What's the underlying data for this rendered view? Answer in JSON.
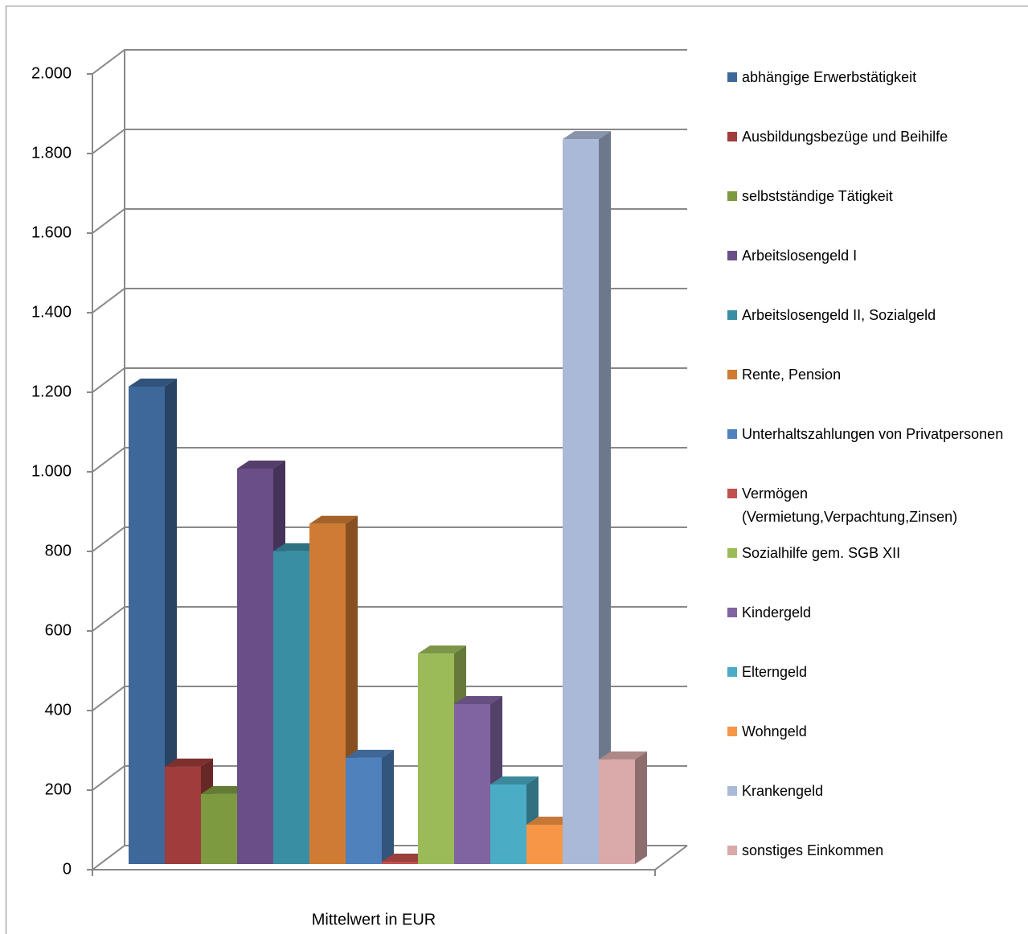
{
  "chart_data": {
    "type": "bar3d",
    "categories": [
      "Mittelwert in EUR"
    ],
    "ylim": [
      0,
      2000
    ],
    "yticks": [
      0,
      200,
      400,
      600,
      800,
      {
        "value": 1000,
        "label": "1.000"
      },
      {
        "value": 1200,
        "label": "1.200"
      },
      {
        "value": 1400,
        "label": "1.400"
      },
      {
        "value": 1600,
        "label": "1.600"
      },
      {
        "value": 1800,
        "label": "1.800"
      },
      {
        "value": 2000,
        "label": "2.000"
      }
    ],
    "grid": true,
    "legend": "right",
    "series": [
      {
        "name": "abhängige Erwerbstätigkeit",
        "color": "#3E679A",
        "values": [
          1200
        ]
      },
      {
        "name": "Ausbildungsbezüge und Beihilfe",
        "color": "#9E3D3B",
        "values": [
          245
        ]
      },
      {
        "name": "selbstständige Tätigkeit",
        "color": "#7D9A41",
        "values": [
          176
        ]
      },
      {
        "name": "Arbeitslosengeld I",
        "color": "#6A4E87",
        "values": [
          994
        ]
      },
      {
        "name": "Arbeitslosengeld II, Sozialgeld",
        "color": "#3A8EA4",
        "values": [
          786
        ]
      },
      {
        "name": "Rente, Pension",
        "color": "#D07B33",
        "values": [
          855
        ]
      },
      {
        "name": "Unterhaltszahlungen von Privatpersonen",
        "color": "#4F81BD",
        "values": [
          267
        ]
      },
      {
        "name": "Vermögen (Vermietung,Verpachtung,Zinsen)",
        "color": "#C0504D",
        "values": [
          6
        ]
      },
      {
        "name": "Sozialhilfe gem. SGB XII",
        "color": "#9BBB59",
        "values": [
          529
        ]
      },
      {
        "name": "Kindergeld",
        "color": "#8064A2",
        "values": [
          402
        ]
      },
      {
        "name": "Elterngeld",
        "color": "#4BACC6",
        "values": [
          200
        ]
      },
      {
        "name": "Wohngeld",
        "color": "#F79646",
        "values": [
          99
        ]
      },
      {
        "name": "Krankengeld",
        "color": "#A9B9D7",
        "values": [
          1822
        ]
      },
      {
        "name": "sonstiges Einkommen",
        "color": "#D9AAA9",
        "values": [
          263
        ]
      }
    ]
  }
}
